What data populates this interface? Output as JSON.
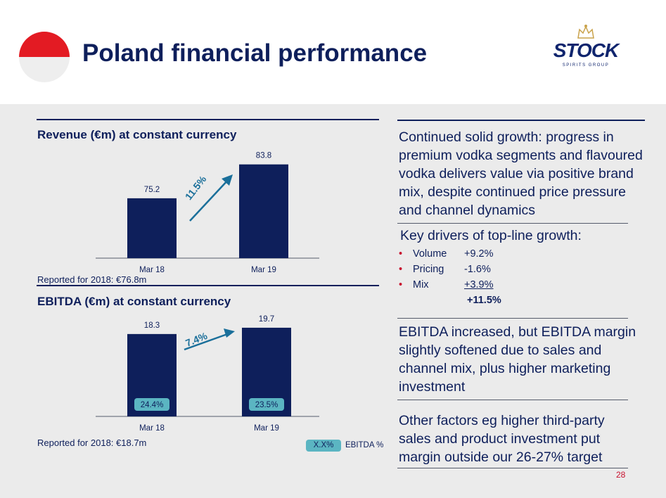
{
  "header": {
    "title": "Poland financial performance",
    "logo_word": "STOCK",
    "logo_sub": "SPIRITS GROUP"
  },
  "colors": {
    "navy": "#0e1f5b",
    "teal": "#5bb5c2",
    "arrow": "#1a6f9a",
    "flag_red": "#e31b23",
    "accent_red": "#c8102e",
    "panel_grey": "#ebebeb"
  },
  "chart_data": [
    {
      "type": "bar",
      "title": "Revenue (€m) at constant currency",
      "categories": [
        "Mar 18",
        "Mar 19"
      ],
      "values": [
        75.2,
        83.8
      ],
      "ylim": [
        60,
        85
      ],
      "growth_label": "11.5%",
      "note": "Reported for 2018: €76.8m"
    },
    {
      "type": "bar",
      "title": "EBITDA (€m) at constant currency",
      "categories": [
        "Mar 18",
        "Mar 19"
      ],
      "values": [
        18.3,
        19.7
      ],
      "margins": [
        "24.4%",
        "23.5%"
      ],
      "ylim": [
        0,
        20
      ],
      "growth_label": "7.4%",
      "note": "Reported for 2018: €18.7m",
      "legend": {
        "swatch_text": "X.X%",
        "label": "EBITDA %"
      }
    }
  ],
  "right": {
    "para1": "Continued solid growth: progress in premium vodka segments and flavoured vodka delivers value via positive brand mix, despite continued price pressure and channel dynamics",
    "drivers_title": "Key drivers of top-line growth:",
    "drivers": [
      {
        "name": "Volume",
        "value": "+9.2%"
      },
      {
        "name": "Pricing",
        "value": "-1.6%"
      },
      {
        "name": "Mix",
        "value": "+3.9%"
      }
    ],
    "drivers_total": "+11.5%",
    "para2": "EBITDA increased, but EBITDA margin slightly softened due to sales and channel mix, plus higher marketing investment",
    "para3": "Other factors eg higher third-party sales and product investment put margin outside our 26-27% target"
  },
  "page_number": "28"
}
